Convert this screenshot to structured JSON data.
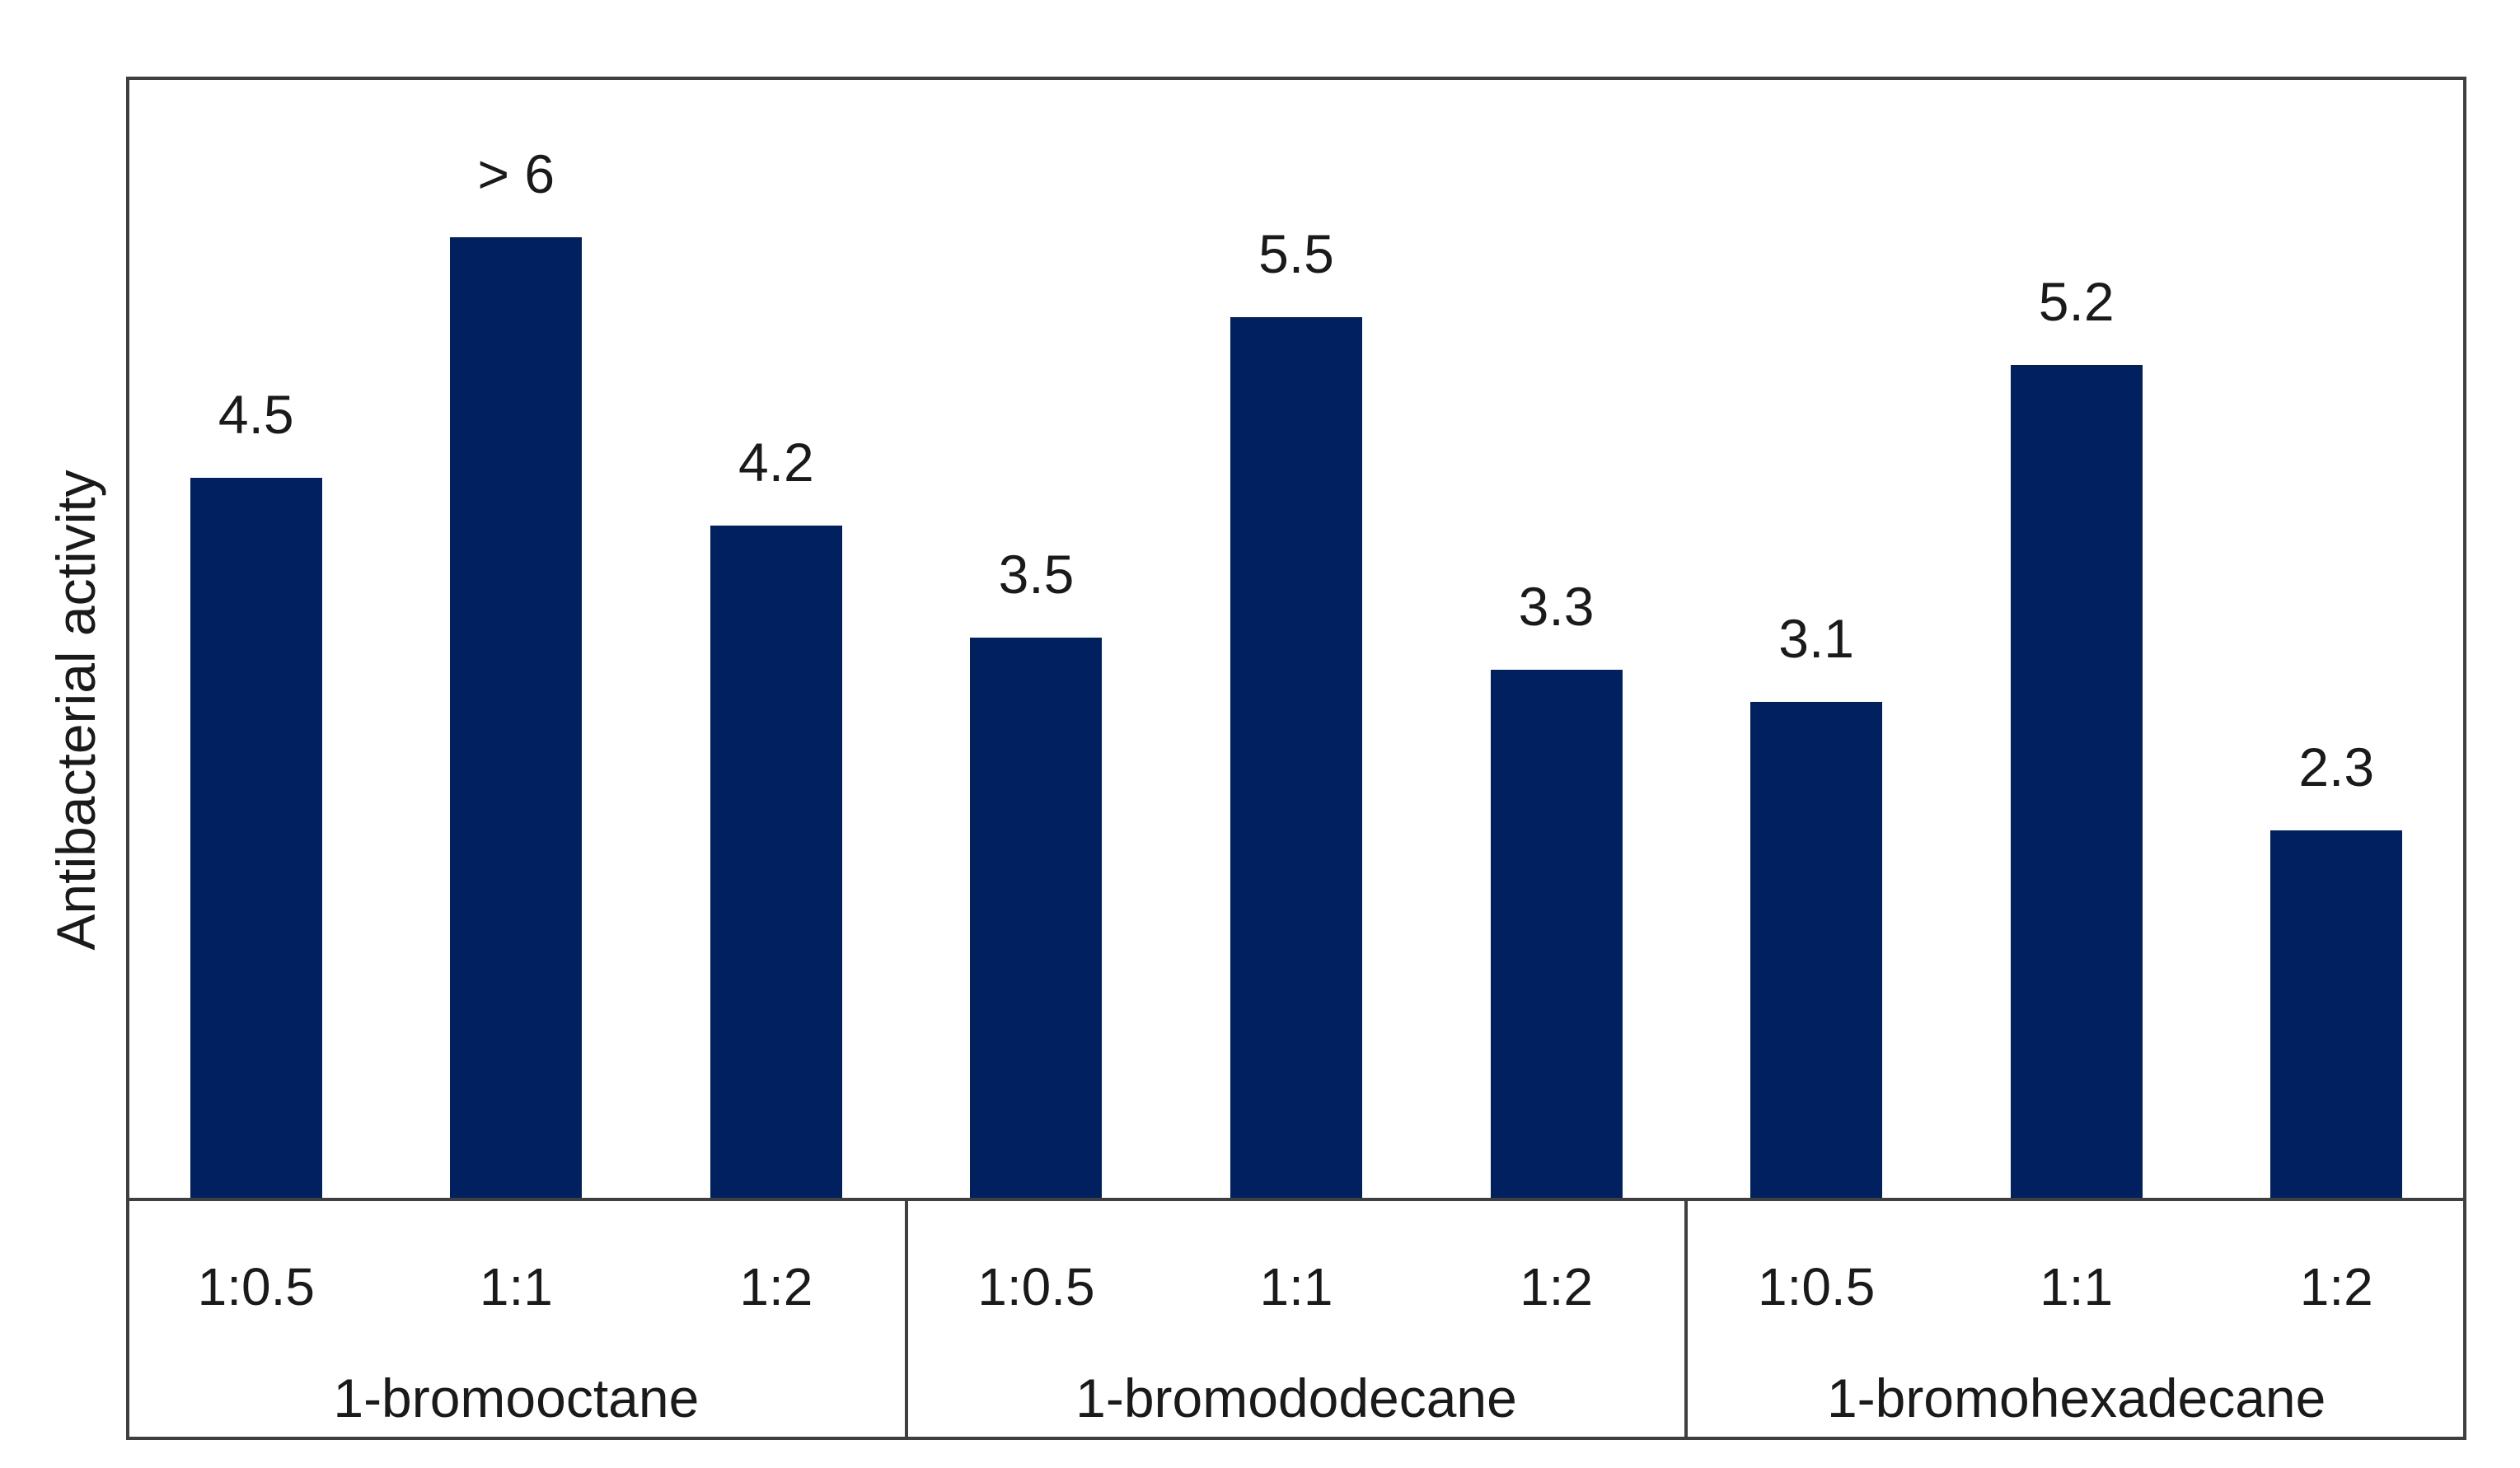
{
  "chart_data": {
    "type": "bar",
    "title": "",
    "ylabel": "Antibacterial activity",
    "xlabel": "",
    "ylim": [
      0,
      7
    ],
    "grid": false,
    "legend": false,
    "bar_color": "#002060",
    "axis_color": "#3f3f3f",
    "text_color": "#1a1a1a",
    "categories_per_group": [
      "1:0.5",
      "1:1",
      "1:2"
    ],
    "groups": [
      {
        "label": "1-bromooctane",
        "bars": [
          {
            "category": "1:0.5",
            "value": 4.5,
            "label": "4.5"
          },
          {
            "category": "1:1",
            "value": 6.0,
            "label": "> 6"
          },
          {
            "category": "1:2",
            "value": 4.2,
            "label": "4.2"
          }
        ]
      },
      {
        "label": "1-bromododecane",
        "bars": [
          {
            "category": "1:0.5",
            "value": 3.5,
            "label": "3.5"
          },
          {
            "category": "1:1",
            "value": 5.5,
            "label": "5.5"
          },
          {
            "category": "1:2",
            "value": 3.3,
            "label": "3.3"
          }
        ]
      },
      {
        "label": "1-bromohexadecane",
        "bars": [
          {
            "category": "1:0.5",
            "value": 3.1,
            "label": "3.1"
          },
          {
            "category": "1:1",
            "value": 5.2,
            "label": "5.2"
          },
          {
            "category": "1:2",
            "value": 2.3,
            "label": "2.3"
          }
        ]
      }
    ]
  }
}
